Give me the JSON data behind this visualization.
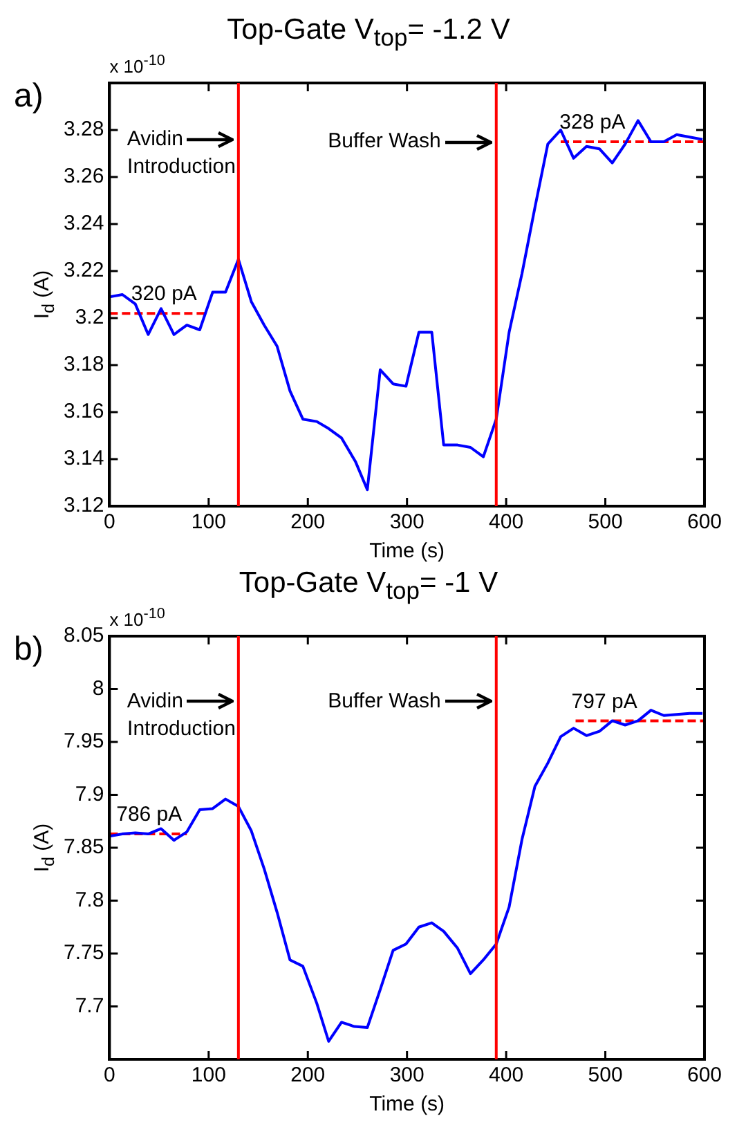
{
  "chart_data": [
    {
      "type": "line",
      "title": "Top-Gate V$_{top}$= -1.2 V",
      "xlabel": "Time (s)",
      "ylabel": "I$_{d}$ (A)",
      "annotations": [
        "a)",
        "x 10$^{-10}$",
        {
          "text": "Avidin\nIntroduction",
          "x": 130,
          "y": 3.276
        },
        {
          "text": "Buffer Wash",
          "x": 390,
          "y": 3.275
        },
        {
          "text": "320 pA",
          "x": 55,
          "y": 3.202
        },
        {
          "text": "328 pA",
          "x": 487,
          "y": 3.275
        }
      ],
      "xlim": [
        0,
        600
      ],
      "xticks": [
        0,
        100,
        200,
        300,
        400,
        500,
        600
      ],
      "ylim": [
        3.12,
        3.3
      ],
      "yticks": [
        3.12,
        3.14,
        3.16,
        3.18,
        3.2,
        3.22,
        3.24,
        3.26,
        3.28
      ],
      "x": [
        0,
        13,
        26,
        39,
        52,
        65,
        78,
        91,
        104,
        117,
        130,
        143,
        156,
        169,
        182,
        195,
        209,
        221,
        234,
        248,
        260,
        273,
        286,
        299,
        312,
        325,
        337,
        351,
        364,
        377,
        390,
        403,
        416,
        429,
        442,
        455,
        468,
        481,
        494,
        507,
        520,
        533,
        546,
        559,
        572,
        585,
        598
      ],
      "series": [
        {
          "color": "#0000ff",
          "values": [
            3.209,
            3.21,
            3.206,
            3.193,
            3.204,
            3.193,
            3.197,
            3.195,
            3.211,
            3.211,
            3.225,
            3.207,
            3.197,
            3.188,
            3.169,
            3.157,
            3.156,
            3.153,
            3.149,
            3.139,
            3.127,
            3.178,
            3.172,
            3.171,
            3.194,
            3.194,
            3.146,
            3.146,
            3.145,
            3.141,
            3.157,
            3.194,
            3.219,
            3.247,
            3.274,
            3.28,
            3.268,
            3.273,
            3.272,
            3.266,
            3.274,
            3.284,
            3.275,
            3.275,
            3.278,
            3.277,
            3.276
          ]
        },
        {
          "color": "#ff0000",
          "line_style": "dashed",
          "x": [
            0,
            100
          ],
          "values": [
            3.202,
            3.202
          ]
        },
        {
          "color": "#ff0000",
          "line_style": "dashed",
          "x": [
            455,
            600
          ],
          "values": [
            3.275,
            3.275
          ]
        }
      ],
      "ref_lines": [
        {
          "axis": "x",
          "value": 130,
          "color": "#ff0000"
        },
        {
          "axis": "x",
          "value": 390,
          "color": "#ff0000"
        }
      ],
      "grid": false,
      "legend": false,
      "marker": "none"
    },
    {
      "type": "line",
      "title": "Top-Gate V$_{top}$= -1 V",
      "xlabel": "Time (s)",
      "ylabel": "I$_{d}$ (A)",
      "annotations": [
        "b)",
        "x 10$^{-10}$",
        {
          "text": "Avidin\nIntroduction",
          "x": 130,
          "y": 7.988
        },
        {
          "text": "Buffer Wash",
          "x": 390,
          "y": 7.988
        },
        {
          "text": "786 pA",
          "x": 40,
          "y": 7.863
        },
        {
          "text": "797 pA",
          "x": 499,
          "y": 7.97
        }
      ],
      "xlim": [
        0,
        600
      ],
      "xticks": [
        0,
        100,
        200,
        300,
        400,
        500,
        600
      ],
      "ylim": [
        7.65,
        8.05
      ],
      "yticks": [
        7.7,
        7.75,
        7.8,
        7.85,
        7.9,
        7.95,
        8,
        8.05
      ],
      "x": [
        0,
        13,
        26,
        39,
        52,
        65,
        78,
        91,
        104,
        117,
        130,
        143,
        156,
        169,
        182,
        195,
        209,
        221,
        234,
        247,
        260,
        273,
        286,
        299,
        312,
        325,
        337,
        351,
        364,
        377,
        390,
        403,
        416,
        429,
        442,
        455,
        468,
        481,
        494,
        507,
        520,
        533,
        546,
        559,
        572,
        585,
        598
      ],
      "series": [
        {
          "color": "#0000ff",
          "values": [
            7.861,
            7.863,
            7.864,
            7.863,
            7.868,
            7.857,
            7.865,
            7.886,
            7.887,
            7.896,
            7.889,
            7.866,
            7.83,
            7.789,
            7.744,
            7.738,
            7.703,
            7.667,
            7.685,
            7.681,
            7.68,
            7.716,
            7.753,
            7.759,
            7.775,
            7.779,
            7.771,
            7.755,
            7.731,
            7.744,
            7.759,
            7.794,
            7.858,
            7.908,
            7.93,
            7.955,
            7.963,
            7.956,
            7.96,
            7.97,
            7.966,
            7.97,
            7.98,
            7.975,
            7.976,
            7.977,
            7.977
          ]
        },
        {
          "color": "#ff0000",
          "line_style": "dashed",
          "x": [
            0,
            78
          ],
          "values": [
            7.863,
            7.863
          ]
        },
        {
          "color": "#ff0000",
          "line_style": "dashed",
          "x": [
            470,
            600
          ],
          "values": [
            7.97,
            7.97
          ]
        }
      ],
      "ref_lines": [
        {
          "axis": "x",
          "value": 130,
          "color": "#ff0000"
        },
        {
          "axis": "x",
          "value": 390,
          "color": "#ff0000"
        }
      ],
      "grid": false,
      "legend": false,
      "marker": "none"
    }
  ]
}
